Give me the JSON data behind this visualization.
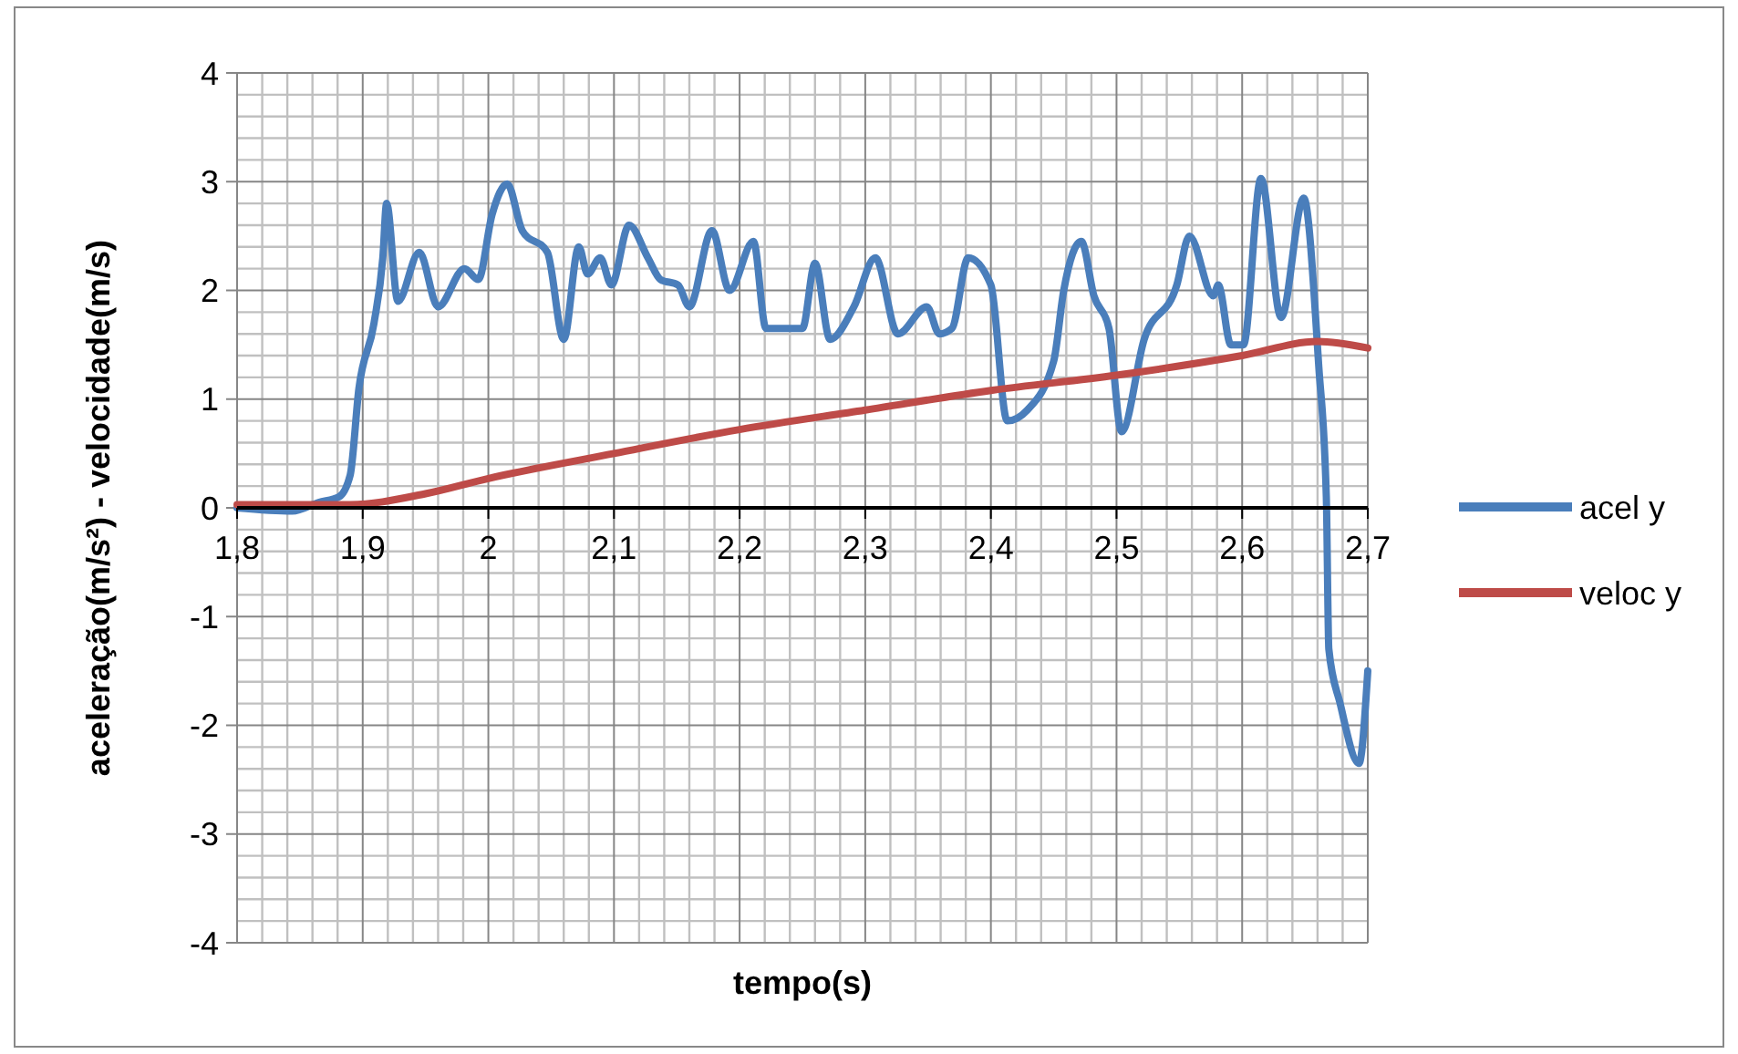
{
  "chart_data": {
    "type": "line",
    "xlabel": "tempo(s)",
    "ylabel": "aceleração(m/s²) - velocidade(m/s)",
    "xlim": [
      1.8,
      2.7
    ],
    "ylim": [
      -4,
      4
    ],
    "xticks": [
      {
        "value": 1.8,
        "label": "1,8"
      },
      {
        "value": 1.9,
        "label": "1,9"
      },
      2,
      {
        "value": 2.1,
        "label": "2,1"
      },
      {
        "value": 2.2,
        "label": "2,2"
      },
      {
        "value": 2.3,
        "label": "2,3"
      },
      {
        "value": 2.4,
        "label": "2,4"
      },
      {
        "value": 2.5,
        "label": "2,5"
      },
      {
        "value": 2.6,
        "label": "2,6"
      },
      {
        "value": 2.7,
        "label": "2,7"
      }
    ],
    "yticks": [
      -4,
      -3,
      -2,
      -1,
      0,
      1,
      2,
      3,
      4
    ],
    "grid": true,
    "legend": "right",
    "marker": "none",
    "line_style": "solid",
    "series": [
      {
        "name": "acel y",
        "color": "#4a7ebb",
        "x": [
          1.8,
          1.844,
          1.865,
          1.881,
          1.89,
          1.897,
          1.909,
          1.916,
          1.919,
          1.928,
          1.945,
          1.96,
          1.981,
          1.992,
          2.003,
          2.015,
          2.027,
          2.047,
          2.06,
          2.072,
          2.079,
          2.089,
          2.098,
          2.112,
          2.127,
          2.137,
          2.151,
          2.16,
          2.178,
          2.192,
          2.211,
          2.221,
          2.25,
          2.26,
          2.272,
          2.291,
          2.308,
          2.326,
          2.349,
          2.359,
          2.369,
          2.382,
          2.4,
          2.413,
          2.429,
          2.45,
          2.458,
          2.472,
          2.482,
          2.494,
          2.504,
          2.522,
          2.548,
          2.558,
          2.577,
          2.581,
          2.591,
          2.601,
          2.615,
          2.631,
          2.649,
          2.661,
          2.667,
          2.669,
          2.678,
          2.693,
          2.7
        ],
        "values": [
          0,
          -0.03,
          0.05,
          0.1,
          0.3,
          1.1,
          1.7,
          2.3,
          2.8,
          1.9,
          2.35,
          1.85,
          2.2,
          2.1,
          2.7,
          2.98,
          2.55,
          2.35,
          1.55,
          2.4,
          2.15,
          2.3,
          2.05,
          2.6,
          2.3,
          2.1,
          2.05,
          1.85,
          2.55,
          2.0,
          2.45,
          1.65,
          1.65,
          2.25,
          1.55,
          1.85,
          2.3,
          1.6,
          1.85,
          1.6,
          1.65,
          2.3,
          2.05,
          0.8,
          0.9,
          1.35,
          2.0,
          2.45,
          1.95,
          1.65,
          0.7,
          1.55,
          2.05,
          2.5,
          1.95,
          2.05,
          1.5,
          1.5,
          3.03,
          1.75,
          2.85,
          1.3,
          0.1,
          -1.3,
          -1.8,
          -2.35,
          -1.5
        ]
      },
      {
        "name": "veloc y",
        "color": "#be4b48",
        "x": [
          1.8,
          1.89,
          1.95,
          2.0,
          2.1,
          2.2,
          2.3,
          2.4,
          2.5,
          2.6,
          2.66,
          2.7
        ],
        "values": [
          0.03,
          0.03,
          0.13,
          0.27,
          0.5,
          0.72,
          0.9,
          1.08,
          1.22,
          1.4,
          1.53,
          1.47
        ]
      }
    ]
  }
}
